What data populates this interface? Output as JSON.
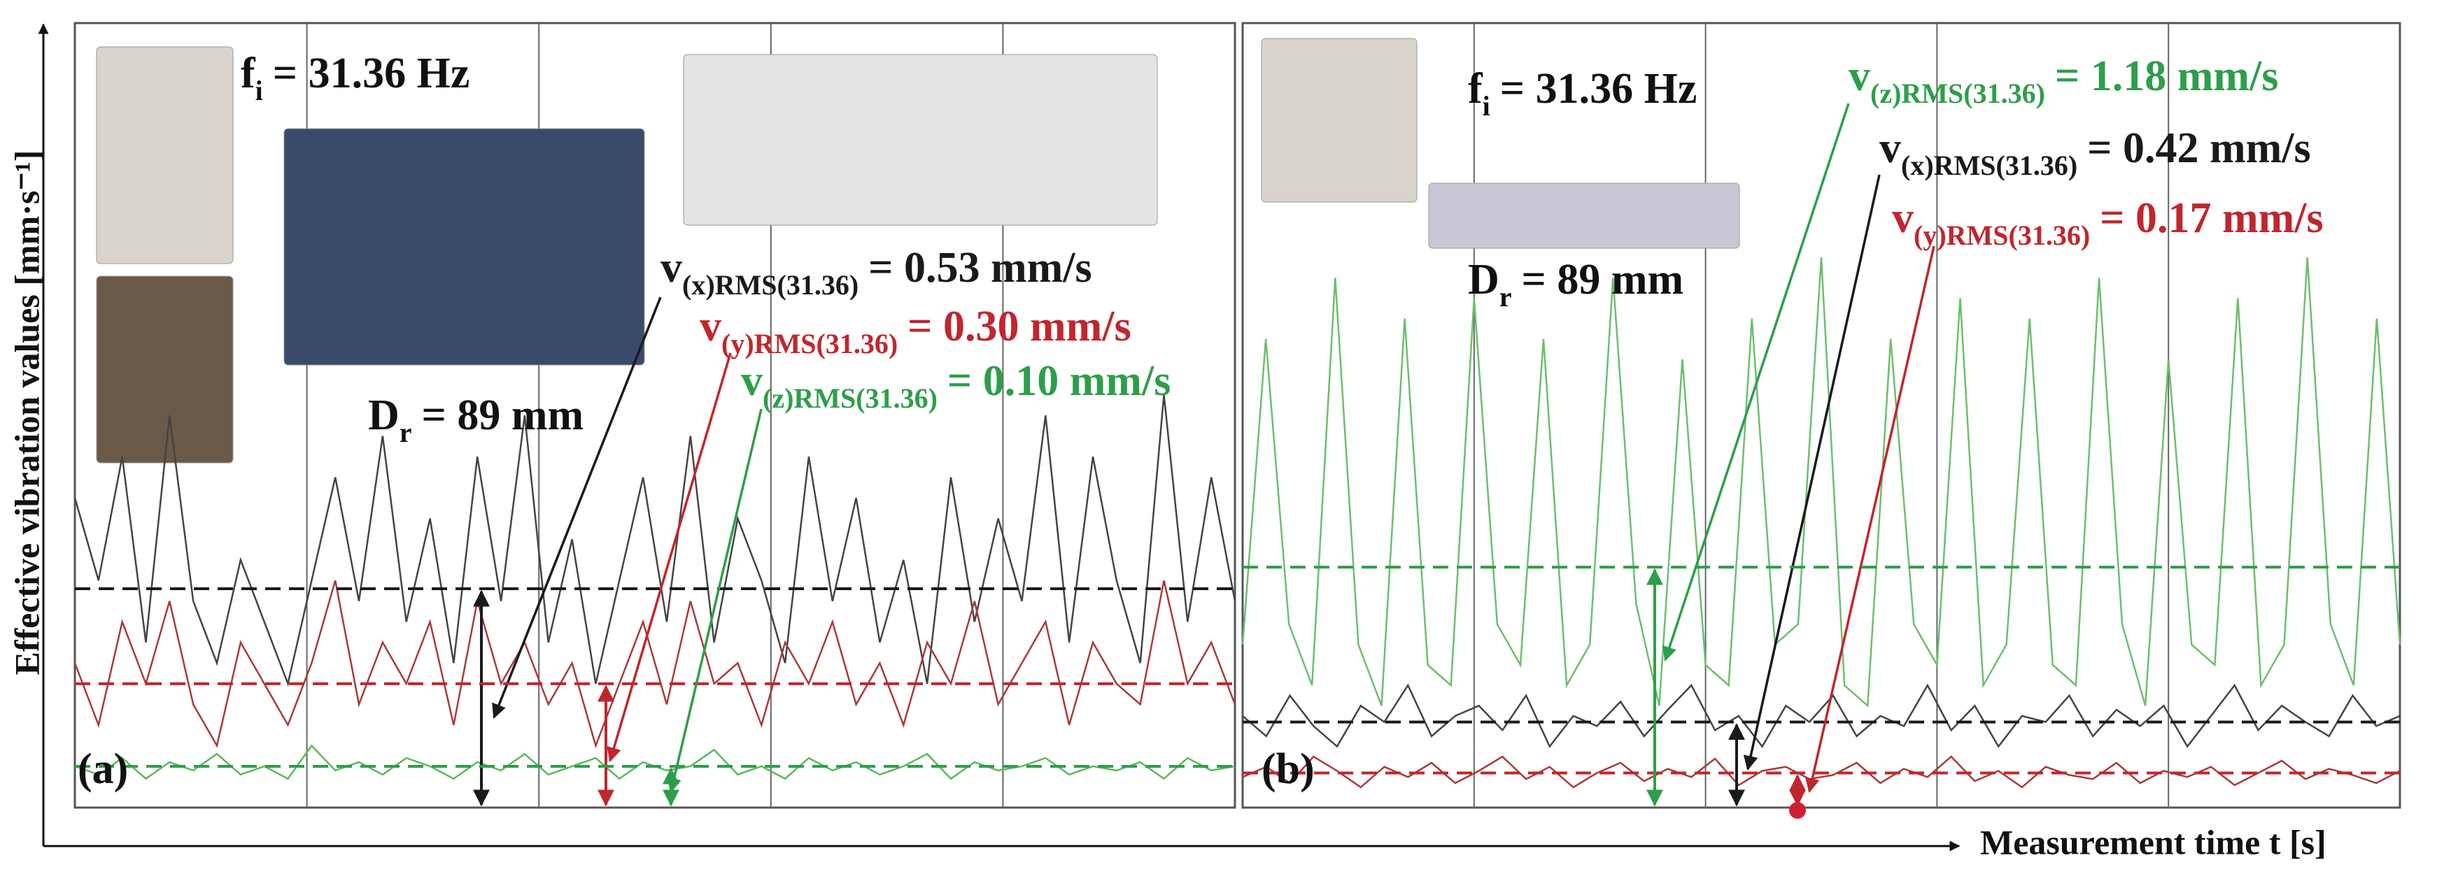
{
  "figure": {
    "y_label": "Effective vibration values [mm·s⁻¹]",
    "x_label": "Measurement time t [s]"
  },
  "chart_data": [
    {
      "type": "line",
      "panel_label": "(a)",
      "ylim": [
        0,
        1.9
      ],
      "annotations": {
        "f": "f",
        "f_sub": "i",
        "f_text": "= 31.36 Hz",
        "d": "D",
        "d_sub": "r",
        "d_text": "= 89 mm"
      },
      "series": [
        {
          "name": "v",
          "subscript": "(x)RMS(31.36)",
          "color": "#1a1a1a",
          "trace_color": "#444444",
          "rms": 0.53,
          "rms_label": "= 0.53 mm/s",
          "values": [
            0.75,
            0.55,
            0.85,
            0.4,
            0.95,
            0.5,
            0.35,
            0.6,
            0.45,
            0.3,
            0.55,
            0.8,
            0.5,
            0.9,
            0.45,
            0.7,
            0.35,
            0.85,
            0.5,
            0.95,
            0.4,
            0.65,
            0.3,
            0.55,
            0.8,
            0.45,
            0.9,
            0.4,
            0.7,
            0.55,
            0.35,
            0.85,
            0.5,
            0.75,
            0.4,
            0.6,
            0.3,
            0.8,
            0.45,
            0.7,
            0.5,
            0.95,
            0.4,
            0.85,
            0.55,
            0.35,
            1.0,
            0.45,
            0.8,
            0.5
          ]
        },
        {
          "name": "v",
          "subscript": "(y)RMS(31.36)",
          "color": "#c0262d",
          "trace_color": "#a83a3a",
          "rms": 0.3,
          "rms_label": "= 0.30 mm/s",
          "values": [
            0.35,
            0.2,
            0.45,
            0.3,
            0.5,
            0.25,
            0.15,
            0.4,
            0.3,
            0.2,
            0.35,
            0.55,
            0.25,
            0.4,
            0.3,
            0.45,
            0.2,
            0.5,
            0.3,
            0.4,
            0.25,
            0.35,
            0.15,
            0.3,
            0.45,
            0.25,
            0.5,
            0.3,
            0.35,
            0.2,
            0.4,
            0.3,
            0.45,
            0.25,
            0.35,
            0.2,
            0.4,
            0.3,
            0.5,
            0.25,
            0.35,
            0.45,
            0.2,
            0.4,
            0.3,
            0.25,
            0.55,
            0.3,
            0.4,
            0.25
          ]
        },
        {
          "name": "v",
          "subscript": "(z)RMS(31.36)",
          "color": "#2e9e4a",
          "trace_color": "#5cb85c",
          "rms": 0.1,
          "rms_label": "= 0.10 mm/s",
          "values": [
            0.1,
            0.08,
            0.12,
            0.07,
            0.11,
            0.09,
            0.13,
            0.08,
            0.1,
            0.07,
            0.15,
            0.09,
            0.11,
            0.08,
            0.12,
            0.1,
            0.07,
            0.11,
            0.09,
            0.13,
            0.08,
            0.1,
            0.12,
            0.07,
            0.11,
            0.09,
            0.1,
            0.14,
            0.08,
            0.1,
            0.07,
            0.12,
            0.09,
            0.11,
            0.08,
            0.1,
            0.13,
            0.07,
            0.11,
            0.09,
            0.1,
            0.12,
            0.08,
            0.1,
            0.09,
            0.11,
            0.07,
            0.12,
            0.09,
            0.1
          ]
        }
      ]
    },
    {
      "type": "line",
      "panel_label": "(b)",
      "ylim": [
        0,
        3.85
      ],
      "annotations": {
        "f": "f",
        "f_sub": "i",
        "f_text": "= 31.36 Hz",
        "d": "D",
        "d_sub": "r",
        "d_text": "= 89 mm"
      },
      "series": [
        {
          "name": "v",
          "subscript": "(x)RMS(31.36)",
          "color": "#1a1a1a",
          "trace_color": "#444444",
          "rms": 0.42,
          "rms_label": "= 0.42 mm/s",
          "values": [
            0.45,
            0.35,
            0.55,
            0.4,
            0.3,
            0.5,
            0.42,
            0.6,
            0.35,
            0.45,
            0.5,
            0.38,
            0.55,
            0.3,
            0.45,
            0.4,
            0.52,
            0.35,
            0.48,
            0.6,
            0.38,
            0.45,
            0.3,
            0.5,
            0.42,
            0.55,
            0.35,
            0.45,
            0.4,
            0.6,
            0.38,
            0.5,
            0.3,
            0.45,
            0.42,
            0.55,
            0.35,
            0.48,
            0.4,
            0.5,
            0.3,
            0.45,
            0.6,
            0.38,
            0.5,
            0.42,
            0.35,
            0.55,
            0.4,
            0.45
          ]
        },
        {
          "name": "v",
          "subscript": "(y)RMS(31.36)",
          "color": "#c0262d",
          "trace_color": "#a83a3a",
          "rms": 0.17,
          "rms_label": "= 0.17 mm/s",
          "values": [
            0.15,
            0.2,
            0.12,
            0.25,
            0.18,
            0.1,
            0.2,
            0.15,
            0.22,
            0.12,
            0.18,
            0.25,
            0.14,
            0.2,
            0.1,
            0.17,
            0.22,
            0.13,
            0.19,
            0.15,
            0.24,
            0.11,
            0.18,
            0.2,
            0.14,
            0.16,
            0.22,
            0.12,
            0.19,
            0.15,
            0.25,
            0.13,
            0.18,
            0.1,
            0.2,
            0.16,
            0.14,
            0.22,
            0.12,
            0.18,
            0.15,
            0.2,
            0.11,
            0.17,
            0.23,
            0.14,
            0.19,
            0.16,
            0.12,
            0.18
          ]
        },
        {
          "name": "v",
          "subscript": "(z)RMS(31.36)",
          "color": "#2e9e4a",
          "trace_color": "#6cbf6c",
          "rms": 1.18,
          "rms_label": "= 1.18 mm/s",
          "values": [
            0.8,
            2.3,
            0.9,
            0.6,
            2.6,
            0.8,
            0.5,
            2.4,
            0.7,
            0.6,
            2.5,
            0.9,
            0.7,
            2.3,
            0.6,
            0.8,
            2.6,
            1.0,
            0.5,
            2.2,
            0.7,
            0.6,
            2.4,
            0.8,
            0.9,
            2.7,
            0.6,
            0.5,
            2.3,
            0.9,
            0.7,
            2.5,
            0.6,
            0.8,
            2.4,
            0.7,
            0.6,
            2.6,
            0.9,
            0.5,
            2.2,
            0.8,
            0.7,
            2.5,
            0.6,
            0.8,
            2.7,
            0.9,
            0.6,
            2.4,
            0.8
          ]
        }
      ]
    }
  ]
}
